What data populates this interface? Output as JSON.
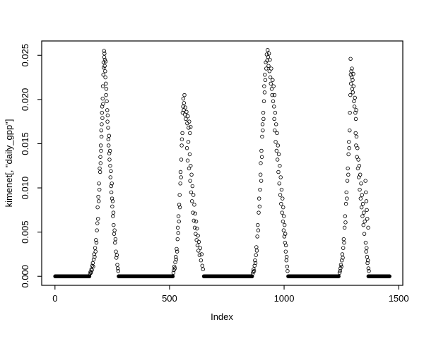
{
  "figure": {
    "background": "#ffffff",
    "foreground": "#000000"
  },
  "chart_data": {
    "type": "scatter",
    "title": "",
    "xlabel": "Index",
    "ylabel": "kimenet[, \"daily_gpp\"]",
    "marker": "open-circle",
    "marker_color": "#000000",
    "grid": false,
    "legend": null,
    "x_ticks": [
      0,
      500,
      1000,
      1500
    ],
    "x_tick_labels": [
      "0",
      "500",
      "1000",
      "1500"
    ],
    "y_ticks": [
      0,
      0.005,
      0.01,
      0.015,
      0.02,
      0.025
    ],
    "y_tick_labels": [
      "0.000",
      "0.005",
      "0.010",
      "0.015",
      "0.020",
      "0.025"
    ],
    "xlim": [
      -58,
      1518
    ],
    "ylim": [
      -0.00102,
      0.02662
    ],
    "zero_value": 0.0,
    "zero_runs": [
      [
        1,
        150
      ],
      [
        278,
        514
      ],
      [
        650,
        860
      ],
      [
        1018,
        1238
      ],
      [
        1368,
        1460
      ]
    ],
    "points": [
      [
        153,
        0.0003
      ],
      [
        155,
        0.0005
      ],
      [
        157,
        0.0004
      ],
      [
        159,
        0.0008
      ],
      [
        161,
        0.0007
      ],
      [
        163,
        0.0012
      ],
      [
        165,
        0.0015
      ],
      [
        167,
        0.0011
      ],
      [
        169,
        0.0019
      ],
      [
        171,
        0.0025
      ],
      [
        173,
        0.0022
      ],
      [
        175,
        0.0032
      ],
      [
        177,
        0.0028
      ],
      [
        179,
        0.0041
      ],
      [
        181,
        0.0038
      ],
      [
        183,
        0.0052
      ],
      [
        185,
        0.006
      ],
      [
        186,
        0.0078
      ],
      [
        188,
        0.0065
      ],
      [
        189,
        0.009
      ],
      [
        191,
        0.0085
      ],
      [
        192,
        0.0105
      ],
      [
        194,
        0.0098
      ],
      [
        195,
        0.0122
      ],
      [
        197,
        0.0118
      ],
      [
        198,
        0.0135
      ],
      [
        199,
        0.0128
      ],
      [
        200,
        0.0148
      ],
      [
        201,
        0.0142
      ],
      [
        202,
        0.0165
      ],
      [
        203,
        0.0158
      ],
      [
        204,
        0.0172
      ],
      [
        205,
        0.0185
      ],
      [
        206,
        0.0192
      ],
      [
        207,
        0.0179
      ],
      [
        208,
        0.0201
      ],
      [
        209,
        0.0215
      ],
      [
        210,
        0.0195
      ],
      [
        211,
        0.0228
      ],
      [
        212,
        0.0242
      ],
      [
        213,
        0.0236
      ],
      [
        214,
        0.0255
      ],
      [
        215,
        0.0248
      ],
      [
        216,
        0.0252
      ],
      [
        217,
        0.0238
      ],
      [
        218,
        0.0245
      ],
      [
        219,
        0.0232
      ],
      [
        220,
        0.0225
      ],
      [
        221,
        0.0243
      ],
      [
        222,
        0.0218
      ],
      [
        223,
        0.0205
      ],
      [
        224,
        0.0212
      ],
      [
        226,
        0.0198
      ],
      [
        228,
        0.0188
      ],
      [
        229,
        0.0175
      ],
      [
        230,
        0.0182
      ],
      [
        232,
        0.0168
      ],
      [
        233,
        0.0155
      ],
      [
        234,
        0.0148
      ],
      [
        236,
        0.0159
      ],
      [
        237,
        0.0139
      ],
      [
        238,
        0.0132
      ],
      [
        240,
        0.0142
      ],
      [
        241,
        0.0125
      ],
      [
        242,
        0.0112
      ],
      [
        244,
        0.0119
      ],
      [
        245,
        0.0102
      ],
      [
        246,
        0.0095
      ],
      [
        248,
        0.0105
      ],
      [
        249,
        0.0088
      ],
      [
        250,
        0.0079
      ],
      [
        252,
        0.0085
      ],
      [
        253,
        0.0068
      ],
      [
        255,
        0.0072
      ],
      [
        256,
        0.0058
      ],
      [
        258,
        0.0048
      ],
      [
        260,
        0.0052
      ],
      [
        262,
        0.0038
      ],
      [
        264,
        0.0042
      ],
      [
        266,
        0.0028
      ],
      [
        268,
        0.0021
      ],
      [
        270,
        0.0024
      ],
      [
        272,
        0.0013
      ],
      [
        274,
        0.0009
      ],
      [
        276,
        0.0006
      ],
      [
        517,
        0.0004
      ],
      [
        519,
        0.0007
      ],
      [
        521,
        0.0011
      ],
      [
        523,
        0.0009
      ],
      [
        525,
        0.0016
      ],
      [
        527,
        0.0022
      ],
      [
        529,
        0.0019
      ],
      [
        531,
        0.0031
      ],
      [
        533,
        0.0028
      ],
      [
        535,
        0.0042
      ],
      [
        536,
        0.0055
      ],
      [
        538,
        0.0049
      ],
      [
        539,
        0.0068
      ],
      [
        541,
        0.0062
      ],
      [
        542,
        0.0081
      ],
      [
        544,
        0.0092
      ],
      [
        545,
        0.0078
      ],
      [
        547,
        0.0105
      ],
      [
        548,
        0.0118
      ],
      [
        550,
        0.0112
      ],
      [
        551,
        0.0132
      ],
      [
        553,
        0.0148
      ],
      [
        554,
        0.0155
      ],
      [
        556,
        0.0162
      ],
      [
        557,
        0.0185
      ],
      [
        559,
        0.0192
      ],
      [
        560,
        0.0201
      ],
      [
        562,
        0.0188
      ],
      [
        563,
        0.0196
      ],
      [
        565,
        0.0205
      ],
      [
        567,
        0.0183
      ],
      [
        569,
        0.0191
      ],
      [
        571,
        0.0178
      ],
      [
        574,
        0.0186
      ],
      [
        577,
        0.0173
      ],
      [
        580,
        0.0181
      ],
      [
        583,
        0.0168
      ],
      [
        586,
        0.0175
      ],
      [
        589,
        0.0162
      ],
      [
        592,
        0.0169
      ],
      [
        576,
        0.0145
      ],
      [
        579,
        0.0131
      ],
      [
        582,
        0.0152
      ],
      [
        585,
        0.0122
      ],
      [
        588,
        0.0138
      ],
      [
        590,
        0.0108
      ],
      [
        592,
        0.0125
      ],
      [
        594,
        0.0095
      ],
      [
        596,
        0.0115
      ],
      [
        598,
        0.0085
      ],
      [
        600,
        0.0102
      ],
      [
        602,
        0.0072
      ],
      [
        604,
        0.0092
      ],
      [
        606,
        0.0063
      ],
      [
        608,
        0.0081
      ],
      [
        610,
        0.0055
      ],
      [
        612,
        0.0071
      ],
      [
        614,
        0.0048
      ],
      [
        616,
        0.0062
      ],
      [
        618,
        0.0041
      ],
      [
        620,
        0.0054
      ],
      [
        622,
        0.0035
      ],
      [
        624,
        0.0046
      ],
      [
        626,
        0.0029
      ],
      [
        628,
        0.0039
      ],
      [
        631,
        0.0024
      ],
      [
        634,
        0.0032
      ],
      [
        637,
        0.0018
      ],
      [
        640,
        0.0025
      ],
      [
        643,
        0.0012
      ],
      [
        646,
        0.0008
      ],
      [
        863,
        0.0003
      ],
      [
        865,
        0.0005
      ],
      [
        867,
        0.0008
      ],
      [
        869,
        0.0006
      ],
      [
        871,
        0.0012
      ],
      [
        873,
        0.0018
      ],
      [
        875,
        0.0015
      ],
      [
        877,
        0.0024
      ],
      [
        879,
        0.0033
      ],
      [
        881,
        0.0029
      ],
      [
        883,
        0.0045
      ],
      [
        885,
        0.0058
      ],
      [
        887,
        0.0052
      ],
      [
        889,
        0.0072
      ],
      [
        891,
        0.0088
      ],
      [
        893,
        0.0079
      ],
      [
        895,
        0.0098
      ],
      [
        897,
        0.0115
      ],
      [
        898,
        0.0128
      ],
      [
        900,
        0.0108
      ],
      [
        901,
        0.0142
      ],
      [
        903,
        0.0135
      ],
      [
        904,
        0.0158
      ],
      [
        906,
        0.0172
      ],
      [
        907,
        0.0165
      ],
      [
        909,
        0.0185
      ],
      [
        910,
        0.0178
      ],
      [
        912,
        0.0198
      ],
      [
        913,
        0.0215
      ],
      [
        915,
        0.0208
      ],
      [
        916,
        0.0228
      ],
      [
        918,
        0.0222
      ],
      [
        920,
        0.0242
      ],
      [
        922,
        0.0235
      ],
      [
        924,
        0.0251
      ],
      [
        926,
        0.0244
      ],
      [
        928,
        0.0256
      ],
      [
        930,
        0.0248
      ],
      [
        932,
        0.0238
      ],
      [
        934,
        0.0252
      ],
      [
        936,
        0.0232
      ],
      [
        938,
        0.0245
      ],
      [
        940,
        0.0225
      ],
      [
        942,
        0.0218
      ],
      [
        944,
        0.0235
      ],
      [
        946,
        0.0212
      ],
      [
        948,
        0.0205
      ],
      [
        950,
        0.0222
      ],
      [
        952,
        0.0198
      ],
      [
        954,
        0.0215
      ],
      [
        956,
        0.0192
      ],
      [
        958,
        0.0205
      ],
      [
        957,
        0.0178
      ],
      [
        959,
        0.0165
      ],
      [
        961,
        0.0185
      ],
      [
        963,
        0.0152
      ],
      [
        965,
        0.0172
      ],
      [
        967,
        0.0142
      ],
      [
        969,
        0.0162
      ],
      [
        971,
        0.0132
      ],
      [
        973,
        0.0148
      ],
      [
        975,
        0.0118
      ],
      [
        977,
        0.0138
      ],
      [
        979,
        0.0105
      ],
      [
        981,
        0.0125
      ],
      [
        983,
        0.0092
      ],
      [
        985,
        0.0112
      ],
      [
        987,
        0.0082
      ],
      [
        989,
        0.0098
      ],
      [
        991,
        0.0072
      ],
      [
        993,
        0.0088
      ],
      [
        995,
        0.0062
      ],
      [
        996,
        0.0078
      ],
      [
        998,
        0.0052
      ],
      [
        999,
        0.0068
      ],
      [
        1001,
        0.0045
      ],
      [
        1002,
        0.0058
      ],
      [
        1004,
        0.0038
      ],
      [
        1005,
        0.0048
      ],
      [
        1007,
        0.0028
      ],
      [
        1008,
        0.0035
      ],
      [
        1010,
        0.0018
      ],
      [
        1011,
        0.0022
      ],
      [
        1013,
        0.0011
      ],
      [
        1015,
        0.0006
      ],
      [
        1242,
        0.0004
      ],
      [
        1244,
        0.0006
      ],
      [
        1246,
        0.0009
      ],
      [
        1248,
        0.0013
      ],
      [
        1250,
        0.0011
      ],
      [
        1252,
        0.0018
      ],
      [
        1254,
        0.0025
      ],
      [
        1256,
        0.0021
      ],
      [
        1258,
        0.0032
      ],
      [
        1260,
        0.0042
      ],
      [
        1262,
        0.0038
      ],
      [
        1264,
        0.0055
      ],
      [
        1266,
        0.0068
      ],
      [
        1268,
        0.0061
      ],
      [
        1270,
        0.0082
      ],
      [
        1272,
        0.0095
      ],
      [
        1274,
        0.0088
      ],
      [
        1276,
        0.0108
      ],
      [
        1278,
        0.0122
      ],
      [
        1280,
        0.0115
      ],
      [
        1281,
        0.0138
      ],
      [
        1283,
        0.0152
      ],
      [
        1284,
        0.0145
      ],
      [
        1286,
        0.0165
      ],
      [
        1287,
        0.0185
      ],
      [
        1289,
        0.0205
      ],
      [
        1290,
        0.0246
      ],
      [
        1291,
        0.0228
      ],
      [
        1292,
        0.0218
      ],
      [
        1293,
        0.0232
      ],
      [
        1295,
        0.0225
      ],
      [
        1296,
        0.0235
      ],
      [
        1297,
        0.0212
      ],
      [
        1299,
        0.0222
      ],
      [
        1300,
        0.0208
      ],
      [
        1302,
        0.0229
      ],
      [
        1303,
        0.0215
      ],
      [
        1305,
        0.0198
      ],
      [
        1307,
        0.0192
      ],
      [
        1309,
        0.0202
      ],
      [
        1311,
        0.0185
      ],
      [
        1313,
        0.0178
      ],
      [
        1315,
        0.0188
      ],
      [
        1312,
        0.0162
      ],
      [
        1314,
        0.0148
      ],
      [
        1316,
        0.0158
      ],
      [
        1318,
        0.0135
      ],
      [
        1320,
        0.0145
      ],
      [
        1322,
        0.0122
      ],
      [
        1324,
        0.0132
      ],
      [
        1326,
        0.0112
      ],
      [
        1328,
        0.0125
      ],
      [
        1330,
        0.0098
      ],
      [
        1332,
        0.0115
      ],
      [
        1334,
        0.0088
      ],
      [
        1336,
        0.0105
      ],
      [
        1338,
        0.0078
      ],
      [
        1340,
        0.0092
      ],
      [
        1342,
        0.0068
      ],
      [
        1344,
        0.0082
      ],
      [
        1346,
        0.0058
      ],
      [
        1348,
        0.0072
      ],
      [
        1350,
        0.0048
      ],
      [
        1352,
        0.0062
      ],
      [
        1355,
        0.0108
      ],
      [
        1357,
        0.0095
      ],
      [
        1359,
        0.0085
      ],
      [
        1361,
        0.0075
      ],
      [
        1363,
        0.0065
      ],
      [
        1367,
        0.0055
      ],
      [
        1356,
        0.0038
      ],
      [
        1358,
        0.0028
      ],
      [
        1360,
        0.0032
      ],
      [
        1362,
        0.0022
      ],
      [
        1364,
        0.0015
      ],
      [
        1366,
        0.0018
      ],
      [
        1368,
        0.0009
      ],
      [
        1370,
        0.0006
      ]
    ]
  }
}
